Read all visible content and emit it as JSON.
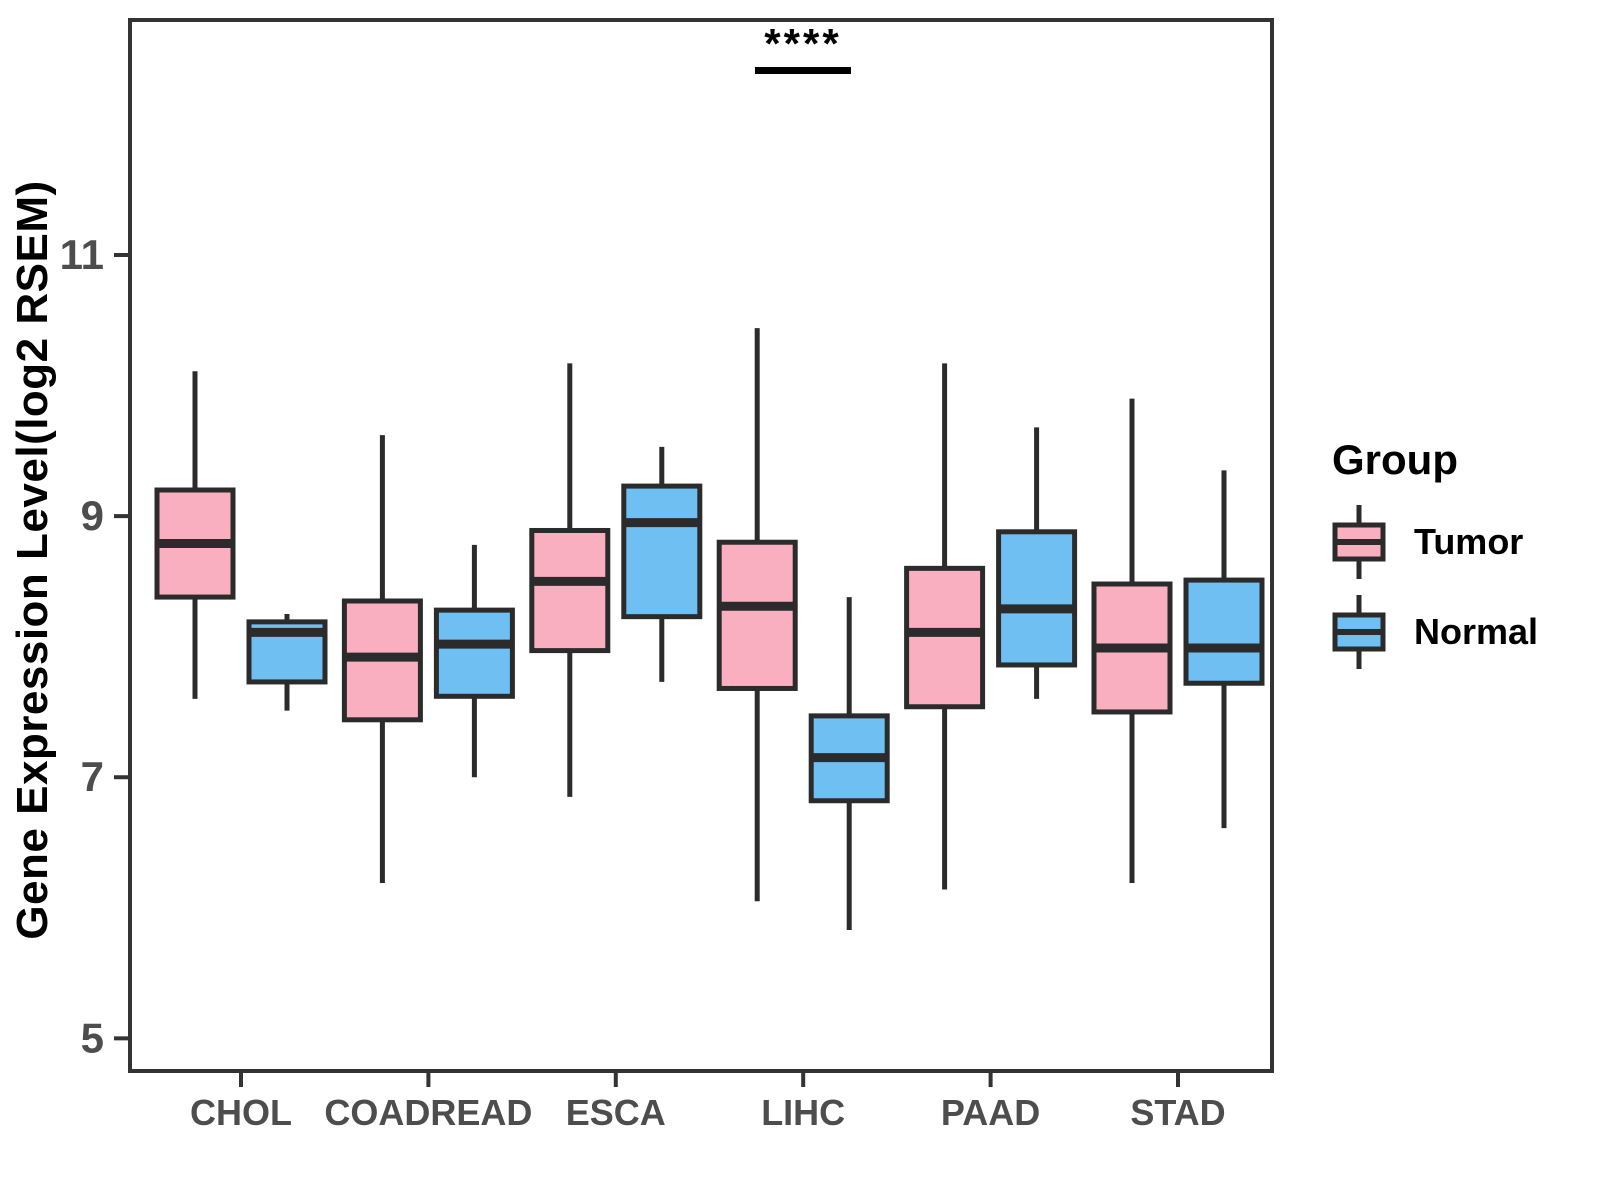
{
  "chart_data": {
    "type": "boxplot",
    "title": "",
    "xlabel": "",
    "ylabel": "Gene Expression Level(log2 RSEM)",
    "categories": [
      "CHOL",
      "COADREAD",
      "ESCA",
      "LIHC",
      "PAAD",
      "STAD"
    ],
    "groups": [
      {
        "name": "Tumor",
        "color": "#FAAFC0"
      },
      {
        "name": "Normal",
        "color": "#6FBFF3"
      }
    ],
    "series": [
      {
        "name": "Tumor",
        "boxes": [
          {
            "category": "CHOL",
            "low": 7.6,
            "q1": 8.38,
            "median": 8.79,
            "q3": 9.2,
            "high": 10.11
          },
          {
            "category": "COADREAD",
            "low": 6.19,
            "q1": 7.44,
            "median": 7.92,
            "q3": 8.35,
            "high": 9.62
          },
          {
            "category": "ESCA",
            "low": 6.85,
            "q1": 7.97,
            "median": 8.5,
            "q3": 8.89,
            "high": 10.17
          },
          {
            "category": "LIHC",
            "low": 6.05,
            "q1": 7.68,
            "median": 8.31,
            "q3": 8.8,
            "high": 10.44
          },
          {
            "category": "PAAD",
            "low": 6.14,
            "q1": 7.54,
            "median": 8.11,
            "q3": 8.6,
            "high": 10.17
          },
          {
            "category": "STAD",
            "low": 6.19,
            "q1": 7.5,
            "median": 7.99,
            "q3": 8.48,
            "high": 9.9
          }
        ]
      },
      {
        "name": "Normal",
        "boxes": [
          {
            "category": "CHOL",
            "low": 7.51,
            "q1": 7.73,
            "median": 8.11,
            "q3": 8.19,
            "high": 8.25
          },
          {
            "category": "COADREAD",
            "low": 7.0,
            "q1": 7.62,
            "median": 8.02,
            "q3": 8.28,
            "high": 8.78
          },
          {
            "category": "ESCA",
            "low": 7.73,
            "q1": 8.23,
            "median": 8.95,
            "q3": 9.23,
            "high": 9.53
          },
          {
            "category": "LIHC",
            "low": 5.83,
            "q1": 6.82,
            "median": 7.15,
            "q3": 7.47,
            "high": 8.38
          },
          {
            "category": "PAAD",
            "low": 7.6,
            "q1": 7.86,
            "median": 8.29,
            "q3": 8.88,
            "high": 9.68
          },
          {
            "category": "STAD",
            "low": 6.61,
            "q1": 7.72,
            "median": 7.99,
            "q3": 8.51,
            "high": 9.35
          }
        ]
      }
    ],
    "y_ticks": [
      {
        "value": 5,
        "label": "5"
      },
      {
        "value": 7,
        "label": "7"
      },
      {
        "value": 9,
        "label": "9"
      },
      {
        "value": 11,
        "label": "11"
      }
    ],
    "ylim": [
      4.75,
      12.8
    ],
    "grid": "off",
    "annotation": {
      "text": "****",
      "category": "LIHC",
      "meaning": "significance"
    },
    "legend": {
      "title": "Group",
      "position": "right"
    },
    "style_colors": {
      "box_stroke": "#2B2B2B",
      "axis_stroke": "#333333",
      "tick_label": "#4D4D4D"
    }
  }
}
